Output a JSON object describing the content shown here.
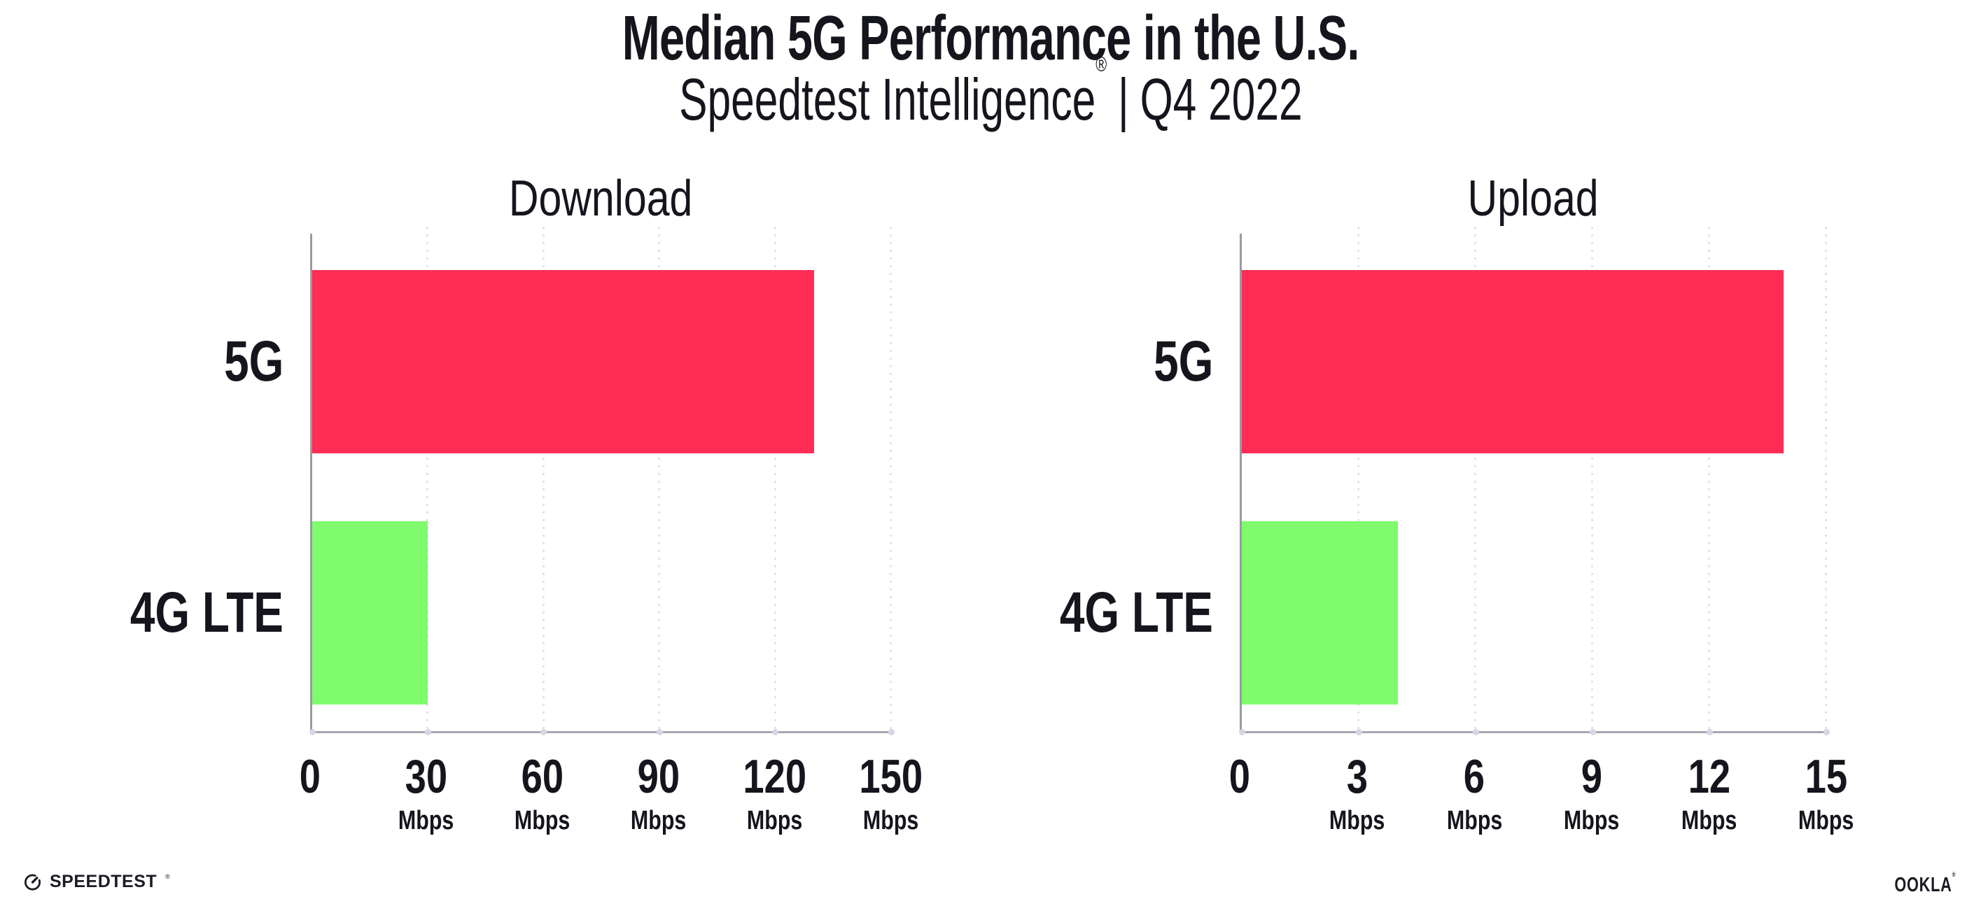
{
  "header": {
    "title": "Median 5G Performance in the U.S.",
    "subtitle": {
      "brand": "Speedtest Intelligence",
      "registered_mark": "®",
      "divider": "|",
      "period": "Q4 2022"
    }
  },
  "chart_data": [
    {
      "type": "bar",
      "orientation": "horizontal",
      "title": "Download",
      "categories": [
        "5G",
        "4G LTE"
      ],
      "values": [
        130,
        30
      ],
      "unit": "Mbps",
      "xlim": [
        0,
        150
      ],
      "xticks": [
        0,
        30,
        60,
        90,
        120,
        150
      ],
      "grid": "vertical-dotted",
      "legend": "none",
      "bar_colors": [
        "#ff2d55",
        "#80fb6e"
      ]
    },
    {
      "type": "bar",
      "orientation": "horizontal",
      "title": "Upload",
      "categories": [
        "5G",
        "4G LTE"
      ],
      "values": [
        13.9,
        4
      ],
      "unit": "Mbps",
      "xlim": [
        0,
        15
      ],
      "xticks": [
        0,
        3,
        6,
        9,
        12,
        15
      ],
      "grid": "vertical-dotted",
      "legend": "none",
      "bar_colors": [
        "#ff2d55",
        "#80fb6e"
      ]
    }
  ],
  "footer": {
    "speedtest_label": "SPEEDTEST",
    "speedtest_mark": "®",
    "ookla_label": "OOKLA",
    "ookla_mark": "®"
  },
  "colors": {
    "bar_5g": "#ff2d55",
    "bar_4g_lte": "#80fb6e",
    "gridline": "#e2e2ee",
    "axis": "#9a9aa2",
    "text": "#15151d",
    "background": "#ffffff"
  }
}
